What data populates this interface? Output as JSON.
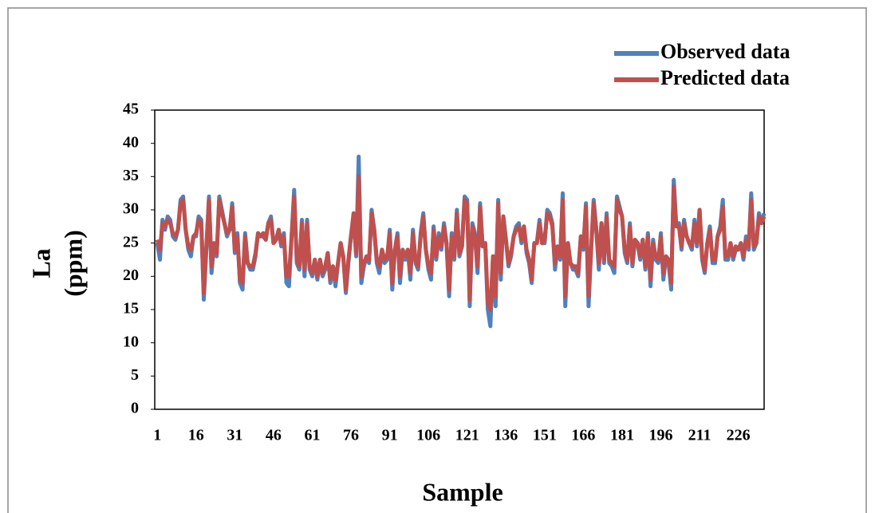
{
  "chart_data": {
    "type": "line",
    "xlabel": "Sample",
    "ylabel": [
      "La",
      "(ppm)"
    ],
    "xlim": [
      0,
      236
    ],
    "ylim": [
      0,
      45
    ],
    "xticks": [
      1,
      16,
      31,
      46,
      61,
      76,
      91,
      106,
      121,
      136,
      151,
      166,
      181,
      196,
      211,
      226
    ],
    "yticks": [
      0,
      5,
      10,
      15,
      20,
      25,
      30,
      35,
      40,
      45
    ],
    "legend": "top-right",
    "x": [
      1,
      2,
      3,
      4,
      5,
      6,
      7,
      8,
      9,
      10,
      11,
      12,
      13,
      14,
      15,
      16,
      17,
      18,
      19,
      20,
      21,
      22,
      23,
      24,
      25,
      26,
      27,
      28,
      29,
      30,
      31,
      32,
      33,
      34,
      35,
      36,
      37,
      38,
      39,
      40,
      41,
      42,
      43,
      44,
      45,
      46,
      47,
      48,
      49,
      50,
      51,
      52,
      53,
      54,
      55,
      56,
      57,
      58,
      59,
      60,
      61,
      62,
      63,
      64,
      65,
      66,
      67,
      68,
      69,
      70,
      71,
      72,
      73,
      74,
      75,
      76,
      77,
      78,
      79,
      80,
      81,
      82,
      83,
      84,
      85,
      86,
      87,
      88,
      89,
      90,
      91,
      92,
      93,
      94,
      95,
      96,
      97,
      98,
      99,
      100,
      101,
      102,
      103,
      104,
      105,
      106,
      107,
      108,
      109,
      110,
      111,
      112,
      113,
      114,
      115,
      116,
      117,
      118,
      119,
      120,
      121,
      122,
      123,
      124,
      125,
      126,
      127,
      128,
      129,
      130,
      131,
      132,
      133,
      134,
      135,
      136,
      137,
      138,
      139,
      140,
      141,
      142,
      143,
      144,
      145,
      146,
      147,
      148,
      149,
      150,
      151,
      152,
      153,
      154,
      155,
      156,
      157,
      158,
      159,
      160,
      161,
      162,
      163,
      164,
      165,
      166,
      167,
      168,
      169,
      170,
      171,
      172,
      173,
      174,
      175,
      176,
      177,
      178,
      179,
      180,
      181,
      182,
      183,
      184,
      185,
      186,
      187,
      188,
      189,
      190,
      191,
      192,
      193,
      194,
      195,
      196,
      197,
      198,
      199,
      200,
      201,
      202,
      203,
      204,
      205,
      206,
      207,
      208,
      209,
      210,
      211,
      212,
      213,
      214,
      215,
      216,
      217,
      218,
      219,
      220,
      221,
      222,
      223,
      224,
      225,
      226,
      227,
      228,
      229,
      230,
      231,
      232,
      233,
      234,
      235,
      236
    ],
    "series": [
      {
        "name": "Observed data",
        "color": "#4f81bd",
        "values": [
          25,
          22.5,
          28.5,
          27,
          29,
          28.5,
          26,
          25.5,
          27,
          31.5,
          32,
          27,
          24,
          23,
          26,
          26,
          29,
          28.5,
          16.5,
          24,
          32,
          20.5,
          25,
          23,
          32,
          30,
          28,
          26,
          27,
          31,
          23.5,
          26.5,
          19,
          18,
          26.5,
          22,
          21,
          21,
          23,
          26.5,
          26,
          26,
          25.5,
          28,
          29,
          25,
          25.5,
          27,
          24.5,
          26.5,
          19,
          18.5,
          26,
          33,
          22,
          21,
          28.5,
          20,
          28.5,
          21,
          20,
          22.5,
          19.5,
          22.5,
          20,
          21,
          23.5,
          19,
          21.5,
          18.5,
          22,
          25,
          23,
          17.5,
          22,
          26,
          29,
          23,
          38,
          19,
          21.5,
          23,
          22,
          30,
          27,
          22,
          20.5,
          24,
          22,
          22.5,
          27,
          18,
          24,
          26.5,
          19,
          24,
          22.5,
          24,
          19.5,
          27,
          22,
          21,
          26.5,
          29.5,
          24,
          21,
          19.5,
          27.5,
          22.5,
          26.5,
          24,
          28,
          25,
          17,
          26.5,
          22.5,
          30,
          23,
          24.5,
          32,
          31.5,
          15.5,
          28,
          26.5,
          20.5,
          31,
          24.5,
          25,
          15,
          12.5,
          23,
          15.5,
          31.5,
          19.5,
          29,
          25.5,
          21.5,
          23,
          26,
          27.5,
          28,
          25,
          27.5,
          23.5,
          22,
          19,
          25,
          25,
          28.5,
          25,
          25,
          30,
          29.5,
          28,
          21,
          24.5,
          22.5,
          32.5,
          15.5,
          25,
          22,
          21,
          21,
          20,
          26,
          24,
          31,
          15.5,
          24,
          31.5,
          27,
          21,
          28,
          22,
          29.5,
          22,
          21.5,
          20.5,
          32,
          30.5,
          29,
          23.5,
          22,
          28,
          21.5,
          25.5,
          25,
          22.5,
          25.5,
          21,
          26.5,
          18.5,
          25.5,
          22.5,
          22,
          26.5,
          19.5,
          23,
          22,
          18,
          34.5,
          27.5,
          28,
          24,
          28.5,
          26,
          25,
          24,
          28.5,
          24.5,
          30,
          22.5,
          20.5,
          25,
          27.5,
          22,
          22,
          26,
          27.5,
          31.5,
          22.5,
          22.5,
          25,
          22.5,
          24,
          24,
          25,
          22.5,
          26,
          24,
          32.5,
          24,
          25,
          29.5,
          28,
          29.5
        ]
      },
      {
        "name": "Predicted data",
        "color": "#c0504d",
        "values": [
          25.5,
          24,
          28,
          27.5,
          28.5,
          28,
          26.5,
          26,
          27,
          31,
          31.5,
          27,
          24.5,
          24,
          26,
          26.5,
          28.5,
          28,
          17.5,
          24.5,
          31.5,
          21.5,
          25,
          23.5,
          31.5,
          29.5,
          28,
          26.5,
          27,
          30.5,
          24,
          26,
          19.5,
          19,
          26,
          22,
          21.5,
          21.5,
          23.5,
          26.5,
          26,
          26.5,
          25.5,
          28,
          28.5,
          25,
          25.5,
          27,
          25,
          26,
          20,
          20,
          26,
          32,
          22.5,
          21.5,
          28,
          21,
          28,
          21.5,
          20.5,
          22.5,
          20,
          22.5,
          20.5,
          21.5,
          23.5,
          19.5,
          21.5,
          19.5,
          22,
          25,
          23,
          18,
          22.5,
          26,
          29.5,
          23.5,
          35,
          20,
          22,
          23,
          22.5,
          29.5,
          27,
          22.5,
          21.5,
          24,
          22.5,
          23,
          26.5,
          19,
          24,
          26,
          20,
          24,
          23,
          24,
          20.5,
          26.5,
          22.5,
          21.5,
          26,
          29,
          24,
          21.5,
          20.5,
          27,
          23,
          26,
          24.5,
          27.5,
          25,
          18,
          26,
          23,
          29.5,
          23.5,
          24.5,
          31.5,
          31,
          16.5,
          27.5,
          26,
          21.5,
          30.5,
          24.5,
          25,
          16,
          15,
          23,
          17,
          31,
          20.5,
          29,
          25.5,
          22,
          23.5,
          26,
          27,
          27.5,
          25.5,
          27.5,
          24,
          22.5,
          19.5,
          25,
          25,
          28,
          25,
          25.5,
          29.5,
          29,
          27.5,
          22,
          24.5,
          23,
          31.5,
          17,
          25,
          22,
          21.5,
          21.5,
          20.5,
          26,
          24.5,
          30.5,
          17,
          24,
          31,
          27,
          22,
          28,
          22.5,
          29,
          22.5,
          22,
          21.5,
          31.5,
          30,
          29,
          24,
          22.5,
          27.5,
          22,
          25.5,
          25,
          23,
          25.5,
          21.5,
          26,
          19.5,
          25,
          23,
          22.5,
          26,
          20.5,
          23,
          22.5,
          19,
          33.5,
          27.5,
          27.5,
          24.5,
          28,
          26,
          25,
          24.5,
          28,
          25,
          30,
          23,
          21,
          25,
          27,
          22.5,
          22.5,
          26,
          27,
          30.5,
          23,
          23,
          25,
          23,
          24.5,
          24,
          25,
          23,
          25.5,
          24.5,
          31.5,
          24.5,
          25,
          29,
          28,
          29
        ]
      }
    ]
  }
}
